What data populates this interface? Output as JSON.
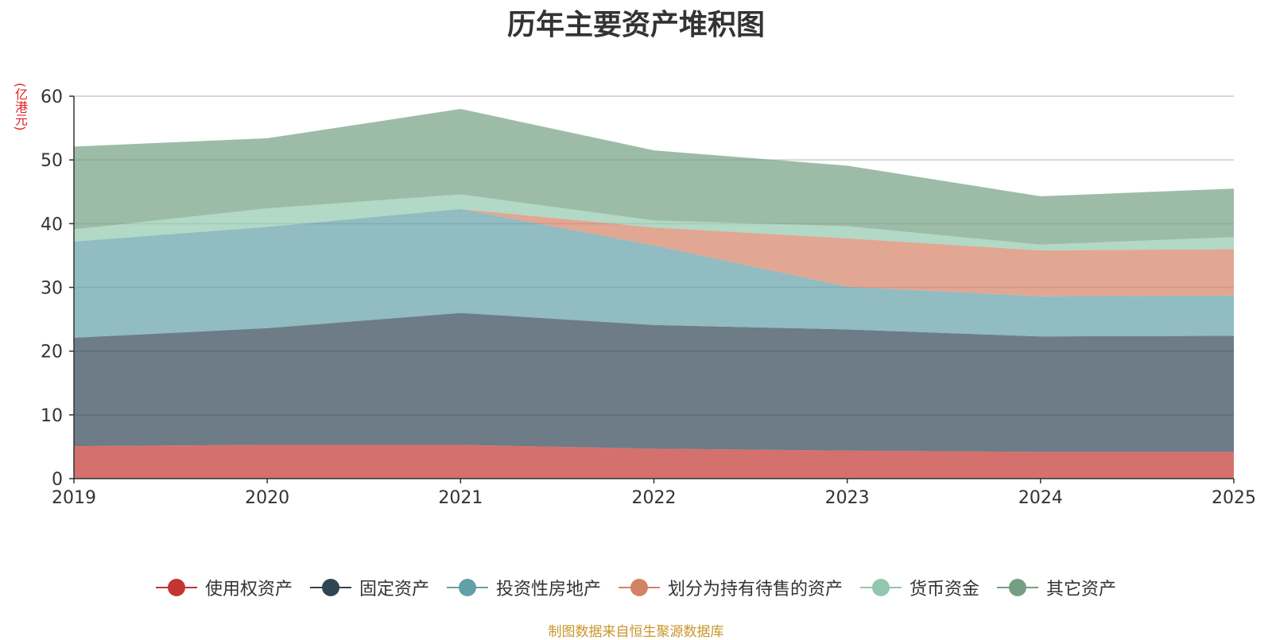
{
  "chart_data": {
    "type": "area",
    "stacked": true,
    "title": "历年主要资产堆积图",
    "unit_label": "(亿港元)",
    "xlabel": "",
    "ylabel": "(亿港元)",
    "categories": [
      "2019",
      "2020",
      "2021",
      "2022",
      "2023",
      "2024",
      "2025"
    ],
    "ylim": [
      0,
      60
    ],
    "yticks": [
      0,
      10,
      20,
      30,
      40,
      50,
      60
    ],
    "grid": true,
    "legend_position": "bottom",
    "series": [
      {
        "name": "使用权资产",
        "color": "#c23531",
        "values": [
          5.1,
          5.3,
          5.3,
          4.7,
          4.4,
          4.2,
          4.2
        ]
      },
      {
        "name": "固定资产",
        "color": "#2f4554",
        "values": [
          17.0,
          18.3,
          20.7,
          19.4,
          19.0,
          18.1,
          18.2
        ]
      },
      {
        "name": "投资性房地产",
        "color": "#61a0a8",
        "values": [
          15.1,
          15.9,
          16.3,
          12.5,
          6.7,
          6.3,
          6.3
        ]
      },
      {
        "name": "划分为持有待售的资产",
        "color": "#d48265",
        "values": [
          0,
          0,
          0,
          2.8,
          7.6,
          7.2,
          7.3
        ]
      },
      {
        "name": "货币资金",
        "color": "#91c7ae",
        "values": [
          1.9,
          2.9,
          2.3,
          1.1,
          1.9,
          0.9,
          1.9
        ]
      },
      {
        "name": "其它资产",
        "color": "#749f83",
        "values": [
          13.0,
          11.0,
          13.4,
          11.0,
          9.5,
          7.6,
          7.6
        ]
      }
    ]
  },
  "source_note": "制图数据来自恒生聚源数据库"
}
